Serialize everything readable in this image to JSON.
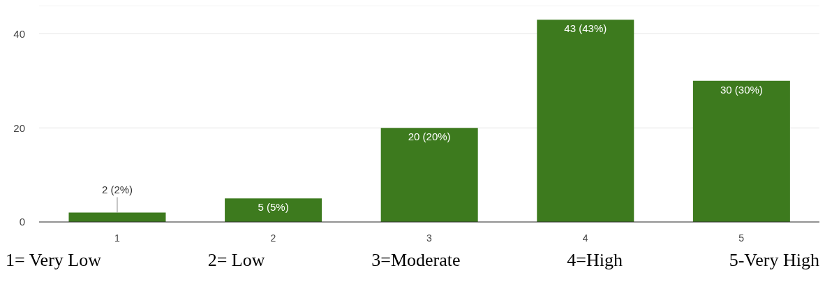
{
  "chart_data": {
    "type": "bar",
    "categories": [
      "1",
      "2",
      "3",
      "4",
      "5"
    ],
    "values": [
      2,
      5,
      20,
      43,
      30
    ],
    "value_labels": [
      "2 (2%)",
      "5 (5%)",
      "20 (20%)",
      "43 (43%)",
      "30 (30%)"
    ],
    "color": "#3d7a1e",
    "ylim": [
      0,
      46
    ],
    "yticks": [
      0,
      20,
      40
    ],
    "grid": "y",
    "annotations": [
      "1= Very Low",
      "2= Low",
      "3=Moderate",
      "4=High",
      "5-Very High"
    ]
  }
}
